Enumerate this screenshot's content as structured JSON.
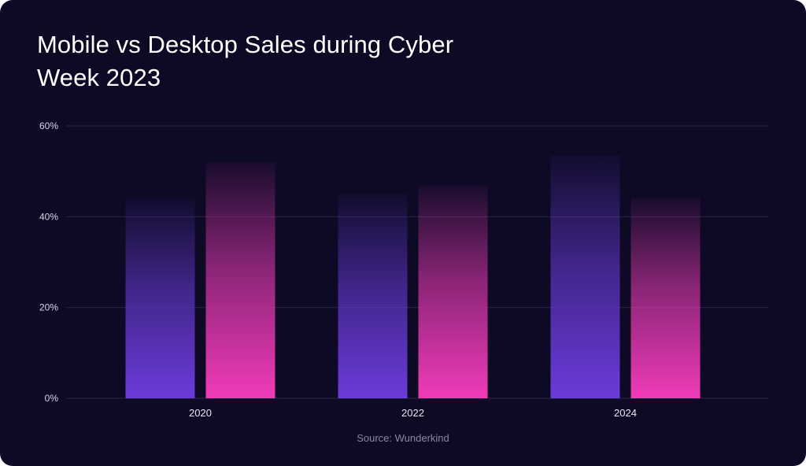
{
  "chart_data": {
    "type": "bar",
    "title": "Mobile vs Desktop Sales during Cyber Week 2023",
    "categories": [
      "2020",
      "2022",
      "2024"
    ],
    "series": [
      {
        "values": [
          44,
          45,
          53.5
        ],
        "color": "#6a3bd9"
      },
      {
        "values": [
          52,
          47,
          44
        ],
        "color": "#f03bb8"
      }
    ],
    "ylim": [
      0,
      60
    ],
    "yticks": [
      0,
      20,
      40,
      60
    ],
    "ytick_labels": [
      "0%",
      "20%",
      "40%",
      "60%"
    ],
    "grid": true,
    "source": "Source: Wunderkind"
  },
  "colors": {
    "background": "#0e0a26",
    "gridline": "#2a2545"
  }
}
